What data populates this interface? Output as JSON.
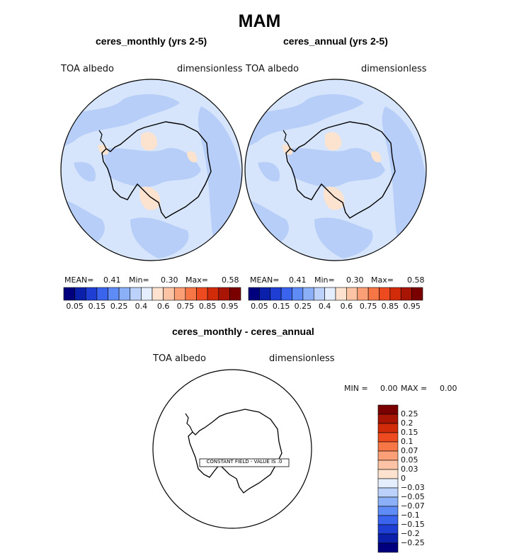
{
  "main_title": "MAM",
  "panels": [
    {
      "subtitle": "ceres_monthly (yrs 2-5)",
      "variable": "TOA albedo",
      "units": "dimensionless",
      "stats": {
        "mean_label": "MEAN=",
        "mean": "0.41",
        "min_label": "Min=",
        "min": "0.30",
        "max_label": "Max=",
        "max": "0.58"
      }
    },
    {
      "subtitle": "ceres_annual (yrs 2-5)",
      "variable": "TOA albedo",
      "units": "dimensionless",
      "stats": {
        "mean_label": "MEAN=",
        "mean": "0.41",
        "min_label": "Min=",
        "min": "0.30",
        "max_label": "Max=",
        "max": "0.58"
      }
    }
  ],
  "colorbar_top": {
    "colors": [
      "#00007f",
      "#0a1faa",
      "#1f3fd4",
      "#3a64ee",
      "#5e8bf5",
      "#8cb0f7",
      "#bcd2fa",
      "#e4eefc",
      "#fde3cf",
      "#fcc4a5",
      "#fb9f76",
      "#f77646",
      "#ee4a1f",
      "#d22b0a",
      "#a81505",
      "#7a0000"
    ],
    "tick_labels": [
      "0.05",
      "0.15",
      "0.25",
      "0.4",
      "0.6",
      "0.75",
      "0.85",
      "0.95"
    ]
  },
  "diff_panel": {
    "subtitle": "ceres_monthly - ceres_annual",
    "variable": "TOA albedo",
    "units": "dimensionless",
    "min_label": "MIN =",
    "min": "0.00",
    "max_label": "MAX =",
    "max": "0.00",
    "annotation": "CONSTANT FIELD - VALUE IS .0"
  },
  "colorbar_diff": {
    "colors": [
      "#7a0000",
      "#a81505",
      "#d22b0a",
      "#ee4a1f",
      "#f77646",
      "#fb9f76",
      "#fcc4a5",
      "#fde3cf",
      "#e4eefc",
      "#bcd2fa",
      "#8cb0f7",
      "#5e8bf5",
      "#3a64ee",
      "#1f3fd4",
      "#0a1faa",
      "#00007f"
    ],
    "tick_labels": [
      "0.25",
      "0.2",
      "0.15",
      "0.1",
      "0.07",
      "0.05",
      "0.03",
      "0",
      "−0.03",
      "−0.05",
      "−0.07",
      "−0.1",
      "−0.15",
      "−0.2",
      "−0.25"
    ]
  }
}
